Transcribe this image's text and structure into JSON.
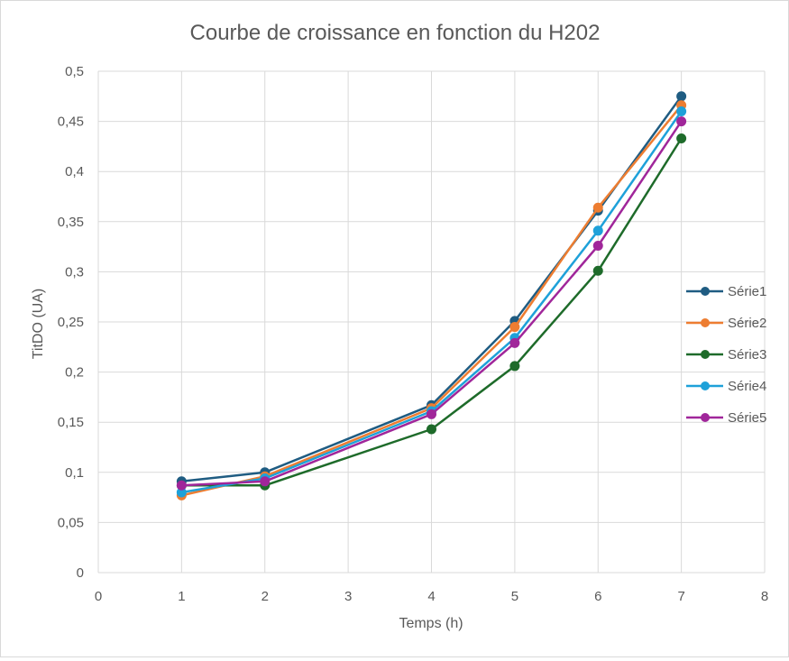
{
  "chart_data": {
    "type": "line",
    "title": "Courbe de croissance en fonction du H202",
    "xlabel": "Temps (h)",
    "ylabel": "TitDO (UA)",
    "x_ticks": [
      "0",
      "1",
      "2",
      "3",
      "4",
      "5",
      "6",
      "7",
      "8"
    ],
    "y_ticks": [
      "0",
      "0,05",
      "0,1",
      "0,15",
      "0,2",
      "0,25",
      "0,3",
      "0,35",
      "0,4",
      "0,45",
      "0,5"
    ],
    "xlim": [
      0,
      8
    ],
    "ylim": [
      0,
      0.5
    ],
    "grid": true,
    "legend_position": "right",
    "x": [
      1,
      2,
      4,
      5,
      6,
      7
    ],
    "series": [
      {
        "name": "Série1",
        "color": "#1f5c82",
        "values": [
          0.091,
          0.1,
          0.167,
          0.251,
          0.361,
          0.475
        ]
      },
      {
        "name": "Série2",
        "color": "#ed7d31",
        "values": [
          0.077,
          0.096,
          0.164,
          0.245,
          0.364,
          0.466
        ]
      },
      {
        "name": "Série3",
        "color": "#1e6b2a",
        "values": [
          0.087,
          0.087,
          0.143,
          0.206,
          0.301,
          0.433
        ]
      },
      {
        "name": "Série4",
        "color": "#1ea1d9",
        "values": [
          0.08,
          0.094,
          0.161,
          0.234,
          0.341,
          0.46
        ]
      },
      {
        "name": "Série5",
        "color": "#a0269a",
        "values": [
          0.087,
          0.091,
          0.158,
          0.229,
          0.326,
          0.45
        ]
      }
    ]
  }
}
